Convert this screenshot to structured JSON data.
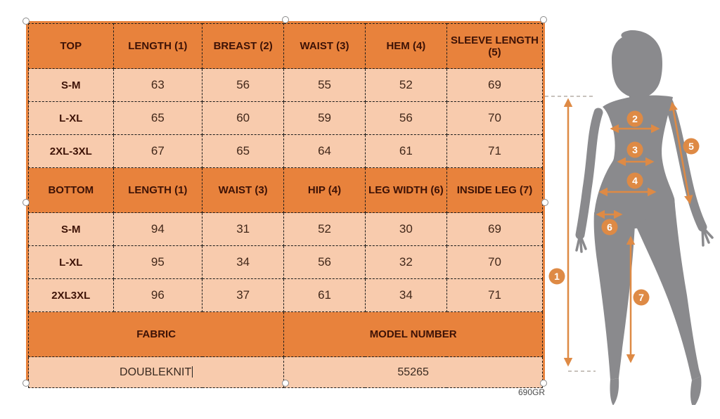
{
  "colors": {
    "accent": "#E8823C",
    "cell": "#F8CBAD",
    "arrow": "#DE8A45",
    "silhouette": "#8A8A8D",
    "header_text": "#3D1206",
    "data_text": "#42281A"
  },
  "table": {
    "sections": [
      {
        "type": "header",
        "cells": [
          "TOP",
          "LENGTH (1)",
          "BREAST (2)",
          "WAIST (3)",
          "HEM (4)",
          "SLEEVE LENGTH (5)"
        ]
      },
      {
        "type": "data",
        "cells": [
          "S-M",
          "63",
          "56",
          "55",
          "52",
          "69"
        ]
      },
      {
        "type": "data",
        "cells": [
          "L-XL",
          "65",
          "60",
          "59",
          "56",
          "70"
        ]
      },
      {
        "type": "data",
        "cells": [
          "2XL-3XL",
          "67",
          "65",
          "64",
          "61",
          "71"
        ]
      },
      {
        "type": "header",
        "cells": [
          "BOTTOM",
          "LENGTH (1)",
          "WAIST (3)",
          "HIP (4)",
          "LEG WIDTH (6)",
          "INSIDE LEG (7)"
        ]
      },
      {
        "type": "data",
        "cells": [
          "S-M",
          "94",
          "31",
          "52",
          "30",
          "69"
        ]
      },
      {
        "type": "data",
        "cells": [
          "L-XL",
          "95",
          "34",
          "56",
          "32",
          "70"
        ]
      },
      {
        "type": "data",
        "cells": [
          "2XL3XL",
          "96",
          "37",
          "61",
          "34",
          "71"
        ]
      },
      {
        "type": "header2",
        "cells": [
          "FABRIC",
          "MODEL NUMBER"
        ]
      },
      {
        "type": "data2",
        "cells": [
          "DOUBLEKNIT",
          "55265"
        ],
        "caret_after_first": true
      }
    ]
  },
  "footer_note": "690GR",
  "figure": {
    "markers": [
      "1",
      "2",
      "3",
      "4",
      "5",
      "6",
      "7"
    ]
  }
}
